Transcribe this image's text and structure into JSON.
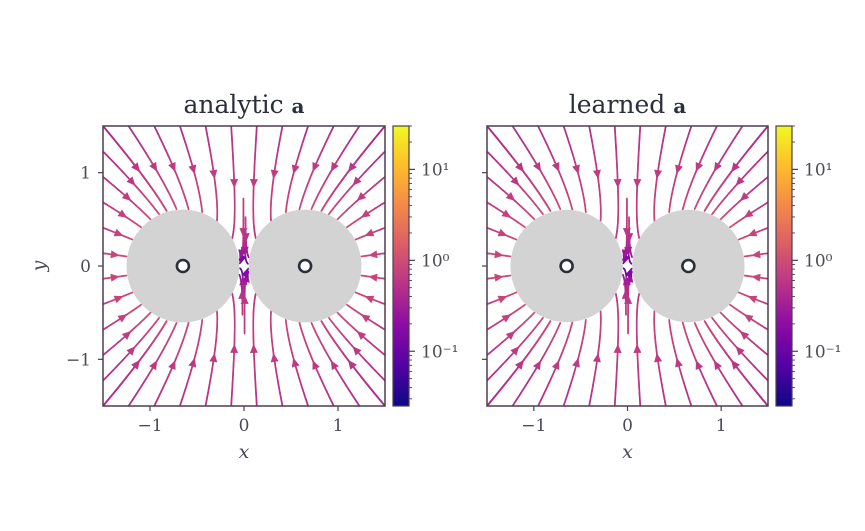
{
  "chart_data": [
    {
      "type": "streamplot",
      "title_text": "analytic",
      "title_bold": "a",
      "xlabel": "x",
      "ylabel": "y",
      "xlim": [
        -1.5,
        1.5
      ],
      "ylim": [
        -1.5,
        1.5
      ],
      "xticks": [
        -1,
        0,
        1
      ],
      "yticks": [
        -1,
        0,
        1
      ],
      "xtick_labels": [
        "−1",
        "0",
        "1"
      ],
      "ytick_labels": [
        "−1",
        "0",
        "1"
      ],
      "obstacles": [
        {
          "center": [
            -0.65,
            0
          ],
          "radius": 0.6
        },
        {
          "center": [
            0.65,
            0
          ],
          "radius": 0.6
        }
      ],
      "point_markers": [
        [
          -0.65,
          0
        ],
        [
          0.65,
          0
        ]
      ],
      "colorbar": {
        "scale": "log",
        "range": [
          0.025,
          30
        ],
        "ticks": [
          0.1,
          1,
          10
        ],
        "tick_labels": [
          "10⁻¹",
          "10⁰",
          "10¹"
        ],
        "colormap": "plasma"
      },
      "colormap_colors": [
        "#0d0887",
        "#5302a3",
        "#8b0aa5",
        "#b83289",
        "#db5c68",
        "#f48849",
        "#febd2a",
        "#f0f921"
      ],
      "obstacle_color": "#d3d3d3"
    },
    {
      "type": "streamplot",
      "title_text": "learned",
      "title_bold": "a",
      "xlabel": "x",
      "ylabel": "",
      "xlim": [
        -1.5,
        1.5
      ],
      "ylim": [
        -1.5,
        1.5
      ],
      "xticks": [
        -1,
        0,
        1
      ],
      "yticks": [
        -1,
        0,
        1
      ],
      "xtick_labels": [
        "−1",
        "0",
        "1"
      ],
      "ytick_labels": [],
      "obstacles": [
        {
          "center": [
            -0.65,
            0
          ],
          "radius": 0.6
        },
        {
          "center": [
            0.65,
            0
          ],
          "radius": 0.6
        }
      ],
      "point_markers": [
        [
          -0.65,
          0
        ],
        [
          0.65,
          0
        ]
      ],
      "colorbar": {
        "scale": "log",
        "range": [
          0.025,
          30
        ],
        "ticks": [
          0.1,
          1,
          10
        ],
        "tick_labels": [
          "10⁻¹",
          "10⁰",
          "10¹"
        ],
        "colormap": "plasma"
      },
      "colormap_colors": [
        "#0d0887",
        "#5302a3",
        "#8b0aa5",
        "#b83289",
        "#db5c68",
        "#f48849",
        "#febd2a",
        "#f0f921"
      ],
      "obstacle_color": "#d3d3d3"
    }
  ]
}
